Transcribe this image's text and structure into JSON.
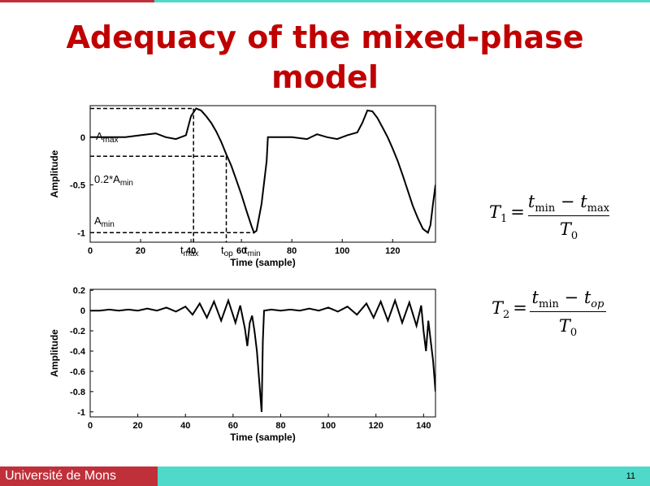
{
  "slide": {
    "title_line1": "Adequacy of the mixed-phase",
    "title_line2": "model",
    "footer": "Université de Mons",
    "page_number": "11",
    "colors": {
      "title": "#c00000",
      "teal": "#4fd9c9",
      "red": "#c0303a",
      "curve": "#000000"
    }
  },
  "formulas": {
    "t1": {
      "lhs": "T",
      "lhs_sub": "1",
      "num_a": "t",
      "num_a_sub": "min",
      "minus": "−",
      "num_b": "t",
      "num_b_sub": "max",
      "den": "T",
      "den_sub": "0"
    },
    "t2": {
      "lhs": "T",
      "lhs_sub": "2",
      "num_a": "t",
      "num_a_sub": "min",
      "minus": "−",
      "num_b": "t",
      "num_b_sub": "op",
      "den": "T",
      "den_sub": "0"
    }
  },
  "chart_data": [
    {
      "type": "line",
      "xlabel": "Time (sample)",
      "ylabel": "Amplitude",
      "xlim": [
        0,
        137
      ],
      "ylim": [
        -1.1,
        0.33
      ],
      "xticks": [
        "0",
        "20",
        "40",
        "60",
        "80",
        "100",
        "120"
      ],
      "yticks": [
        "0",
        "-0.5",
        "-1"
      ],
      "annotations": [
        {
          "text": "A",
          "sub": "max"
        },
        {
          "text": "0.2*A",
          "sub": "min"
        },
        {
          "text": "A",
          "sub": "min"
        },
        {
          "text": "t",
          "sub": "max"
        },
        {
          "text": "t",
          "sub": "op"
        },
        {
          "text": "t",
          "sub": "min"
        }
      ],
      "markers": {
        "t_max": 41,
        "t_op": 54,
        "t_min": 65,
        "a_max": 0.3,
        "a_02min": -0.2,
        "a_min": -1
      },
      "series": [
        {
          "x": [
            0,
            8,
            14,
            20,
            26,
            30,
            34,
            38,
            40,
            42,
            44,
            46,
            48,
            50,
            52,
            54,
            56,
            58,
            60,
            62,
            64,
            65,
            66,
            68,
            70,
            70.5,
            72,
            80,
            86,
            90,
            94,
            98,
            102,
            106,
            108,
            110,
            112,
            114,
            116,
            118,
            120,
            122,
            124,
            126,
            128,
            130,
            132,
            134,
            135,
            136,
            137
          ],
          "y": [
            0,
            0,
            0,
            0.02,
            0.04,
            0.0,
            -0.02,
            0.02,
            0.22,
            0.3,
            0.28,
            0.22,
            0.15,
            0.06,
            -0.05,
            -0.18,
            -0.3,
            -0.45,
            -0.6,
            -0.77,
            -0.93,
            -1.0,
            -0.98,
            -0.7,
            -0.25,
            0.0,
            0.0,
            0.0,
            -0.02,
            0.03,
            0.0,
            -0.02,
            0.02,
            0.05,
            0.15,
            0.28,
            0.27,
            0.2,
            0.1,
            0.0,
            -0.12,
            -0.25,
            -0.4,
            -0.56,
            -0.72,
            -0.85,
            -0.96,
            -1.0,
            -0.92,
            -0.7,
            -0.5
          ]
        }
      ]
    },
    {
      "type": "line",
      "xlabel": "Time (sample)",
      "ylabel": "Amplitude",
      "xlim": [
        0,
        145
      ],
      "ylim": [
        -1.05,
        0.21
      ],
      "xticks": [
        "0",
        "20",
        "40",
        "60",
        "80",
        "100",
        "120",
        "140"
      ],
      "yticks": [
        "0.2",
        "0",
        "-0.2",
        "-0.4",
        "-0.6",
        "-0.8",
        "-1"
      ],
      "series": [
        {
          "x": [
            0,
            4,
            8,
            12,
            16,
            20,
            24,
            28,
            32,
            36,
            40,
            43,
            46,
            49,
            52,
            55,
            58,
            61,
            63,
            65,
            66,
            67,
            68,
            69,
            70,
            71,
            72,
            72.5,
            73,
            76,
            80,
            84,
            88,
            92,
            96,
            100,
            104,
            108,
            112,
            116,
            119,
            122,
            125,
            128,
            131,
            134,
            137,
            139,
            140,
            141,
            142,
            143,
            144,
            145
          ],
          "y": [
            0,
            0.0,
            0.01,
            0.0,
            0.01,
            0.0,
            0.02,
            0.0,
            0.03,
            -0.01,
            0.04,
            -0.04,
            0.07,
            -0.07,
            0.09,
            -0.1,
            0.1,
            -0.12,
            0.05,
            -0.18,
            -0.35,
            -0.12,
            -0.05,
            -0.2,
            -0.4,
            -0.7,
            -1.0,
            -0.3,
            0.0,
            0.01,
            0.0,
            0.01,
            0.0,
            0.02,
            0.0,
            0.03,
            -0.01,
            0.04,
            -0.04,
            0.07,
            -0.07,
            0.09,
            -0.1,
            0.1,
            -0.12,
            0.08,
            -0.15,
            0.05,
            -0.2,
            -0.4,
            -0.1,
            -0.3,
            -0.5,
            -0.8
          ]
        }
      ]
    }
  ]
}
